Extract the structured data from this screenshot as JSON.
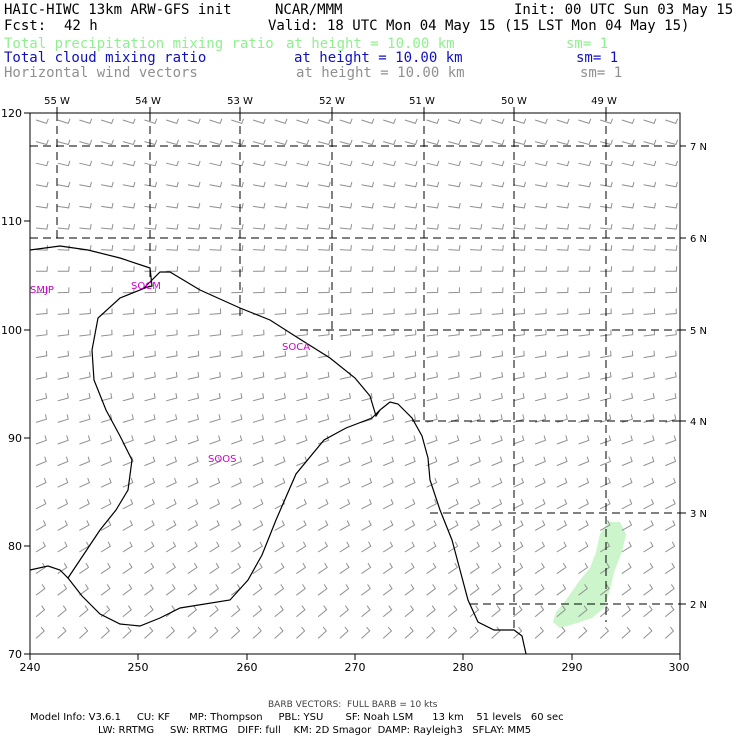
{
  "header": {
    "model_title": "HAIC-HIWC 13km ARW-GFS init",
    "org": "NCAR/MMM",
    "init": "Init: 00 UTC Sun 03 May 15",
    "fcst_label": "Fcst:",
    "fcst_value": "42 h",
    "valid": "Valid: 18 UTC Mon 04 May 15 (15 LST Mon 04 May 15)"
  },
  "fields": [
    {
      "name": "Total precipitation mixing ratio",
      "height": "at height = 10.00 km",
      "sm": "sm= 1",
      "color": "#8ff08f"
    },
    {
      "name": "Total cloud mixing ratio",
      "height": "at height = 10.00 km",
      "sm": "sm= 1",
      "color": "#1010c0"
    },
    {
      "name": "Horizontal wind vectors",
      "height": "at height = 10.00 km",
      "sm": "sm= 1",
      "color": "#909090"
    }
  ],
  "map": {
    "lon_labels": [
      "55 W",
      "54 W",
      "53 W",
      "52 W",
      "51 W",
      "50 W",
      "49 W"
    ],
    "lat_labels": [
      "7 N",
      "6 N",
      "5 N",
      "4 N",
      "3 N",
      "2 N"
    ],
    "x_ticks": [
      "240",
      "250",
      "260",
      "270",
      "280",
      "290",
      "300"
    ],
    "y_ticks": [
      "120",
      "110",
      "100",
      "90",
      "80",
      "70"
    ],
    "x_range": [
      240,
      300
    ],
    "y_range": [
      70,
      120
    ],
    "region_labels": [
      "SMJP",
      "SOCM",
      "SOCA",
      "SOOS"
    ],
    "region_label_color": "#cc00cc",
    "precip_area_color": "#ccf5cc",
    "barb_color": "#909090"
  },
  "footer": {
    "barb_note": "BARB VECTORS:  FULL BARB = 10 kts",
    "line1": "Model Info: V3.6.1     CU: KF      MP: Thompson     PBL: YSU       SF: Noah LSM      13 km    51 levels   60 sec",
    "line2": "LW: RRTMG     SW: RRTMG   DIFF: full    KM: 2D Smagor  DAMP: Rayleigh3   SFLAY: MM5"
  }
}
